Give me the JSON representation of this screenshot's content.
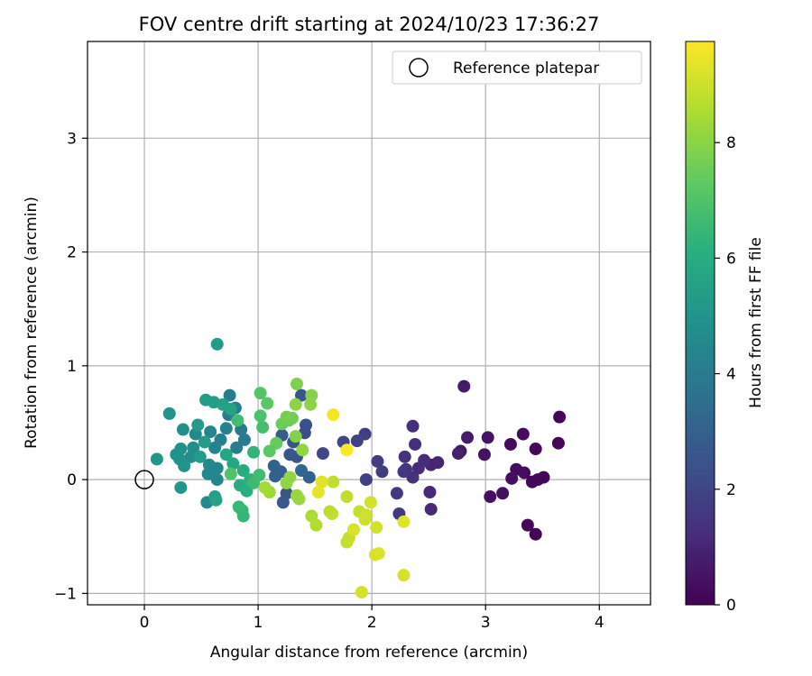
{
  "chart_data": {
    "type": "scatter",
    "title": "FOV centre drift starting at 2024/10/23 17:36:27",
    "xlabel": "Angular distance from reference (arcmin)",
    "ylabel": "Rotation from reference (arcmin)",
    "xlim": [
      -0.5,
      4.45
    ],
    "ylim": [
      -1.1,
      3.85
    ],
    "xticks": [
      0,
      1,
      2,
      3,
      4
    ],
    "yticks": [
      -1,
      0,
      1,
      2,
      3
    ],
    "grid": true,
    "legend": {
      "location": "upper right",
      "entries": [
        "Reference platepar"
      ]
    },
    "reference_point": {
      "x": 0,
      "y": 0
    },
    "colorbar": {
      "label": "Hours from first FF file",
      "range": [
        0,
        9.75
      ],
      "ticks": [
        0,
        2,
        4,
        6,
        8
      ],
      "colormap": "viridis"
    },
    "points": [
      {
        "x": 3.65,
        "y": 0.55,
        "c": 0.1
      },
      {
        "x": 3.64,
        "y": 0.32,
        "c": 0.1
      },
      {
        "x": 3.51,
        "y": 0.02,
        "c": 0.1
      },
      {
        "x": 3.46,
        "y": 0.0,
        "c": 0.2
      },
      {
        "x": 3.41,
        "y": -0.02,
        "c": 0.2
      },
      {
        "x": 3.44,
        "y": 0.27,
        "c": 0.2
      },
      {
        "x": 3.44,
        "y": -0.48,
        "c": 0.1
      },
      {
        "x": 3.37,
        "y": -0.4,
        "c": 0.2
      },
      {
        "x": 3.34,
        "y": 0.06,
        "c": 0.3
      },
      {
        "x": 3.33,
        "y": 0.4,
        "c": 0.3
      },
      {
        "x": 3.27,
        "y": 0.09,
        "c": 0.3
      },
      {
        "x": 3.23,
        "y": 0.01,
        "c": 0.4
      },
      {
        "x": 3.22,
        "y": 0.31,
        "c": 0.3
      },
      {
        "x": 3.15,
        "y": -0.12,
        "c": 0.4
      },
      {
        "x": 3.04,
        "y": -0.15,
        "c": 0.4
      },
      {
        "x": 3.02,
        "y": 0.37,
        "c": 0.5
      },
      {
        "x": 2.99,
        "y": 0.22,
        "c": 0.5
      },
      {
        "x": 2.84,
        "y": 0.37,
        "c": 0.7
      },
      {
        "x": 2.81,
        "y": 0.82,
        "c": 0.7
      },
      {
        "x": 2.78,
        "y": 0.25,
        "c": 0.6
      },
      {
        "x": 2.76,
        "y": 0.23,
        "c": 0.8
      },
      {
        "x": 2.58,
        "y": 0.15,
        "c": 1.0
      },
      {
        "x": 2.52,
        "y": 0.13,
        "c": 1.0
      },
      {
        "x": 2.51,
        "y": -0.11,
        "c": 1.1
      },
      {
        "x": 2.52,
        "y": -0.26,
        "c": 1.1
      },
      {
        "x": 2.46,
        "y": 0.17,
        "c": 1.2
      },
      {
        "x": 2.41,
        "y": 0.1,
        "c": 1.2
      },
      {
        "x": 2.38,
        "y": 0.31,
        "c": 1.3
      },
      {
        "x": 2.36,
        "y": 0.47,
        "c": 1.3
      },
      {
        "x": 2.36,
        "y": 0.02,
        "c": 1.4
      },
      {
        "x": 2.3,
        "y": 0.09,
        "c": 1.4
      },
      {
        "x": 2.29,
        "y": 0.2,
        "c": 1.4
      },
      {
        "x": 2.28,
        "y": 0.07,
        "c": 1.5
      },
      {
        "x": 2.24,
        "y": -0.3,
        "c": 1.6
      },
      {
        "x": 2.22,
        "y": -0.12,
        "c": 1.6
      },
      {
        "x": 2.09,
        "y": 0.07,
        "c": 1.7
      },
      {
        "x": 2.05,
        "y": 0.16,
        "c": 1.7
      },
      {
        "x": 1.95,
        "y": 0.0,
        "c": 1.8
      },
      {
        "x": 1.94,
        "y": 0.4,
        "c": 1.8
      },
      {
        "x": 1.87,
        "y": 0.34,
        "c": 1.9
      },
      {
        "x": 1.75,
        "y": 0.33,
        "c": 2.0
      },
      {
        "x": 1.57,
        "y": 0.23,
        "c": 2.1
      },
      {
        "x": 1.42,
        "y": 0.48,
        "c": 2.4
      },
      {
        "x": 1.41,
        "y": 0.41,
        "c": 2.3
      },
      {
        "x": 1.38,
        "y": 0.74,
        "c": 2.6
      },
      {
        "x": 1.34,
        "y": 0.2,
        "c": 2.5
      },
      {
        "x": 1.31,
        "y": 0.33,
        "c": 2.6
      },
      {
        "x": 1.28,
        "y": 0.22,
        "c": 2.6
      },
      {
        "x": 1.25,
        "y": -0.12,
        "c": 2.6
      },
      {
        "x": 1.22,
        "y": -0.2,
        "c": 2.7
      },
      {
        "x": 1.21,
        "y": 0.39,
        "c": 2.8
      },
      {
        "x": 1.2,
        "y": 0.07,
        "c": 2.9
      },
      {
        "x": 1.15,
        "y": 0.03,
        "c": 3.0
      },
      {
        "x": 1.14,
        "y": 0.12,
        "c": 3.0
      },
      {
        "x": 1.45,
        "y": 0.02,
        "c": 3.0
      },
      {
        "x": 1.38,
        "y": 0.08,
        "c": 3.2
      },
      {
        "x": 0.8,
        "y": 0.63,
        "c": 4.0
      },
      {
        "x": 0.75,
        "y": 0.74,
        "c": 4.1
      },
      {
        "x": 0.88,
        "y": 0.35,
        "c": 4.0
      },
      {
        "x": 0.85,
        "y": 0.44,
        "c": 4.0
      },
      {
        "x": 0.81,
        "y": 0.28,
        "c": 4.0
      },
      {
        "x": 0.74,
        "y": 0.57,
        "c": 4.1
      },
      {
        "x": 0.72,
        "y": 0.45,
        "c": 4.2
      },
      {
        "x": 0.67,
        "y": 0.35,
        "c": 4.2
      },
      {
        "x": 0.62,
        "y": 0.28,
        "c": 4.3
      },
      {
        "x": 0.64,
        "y": 0.1,
        "c": 4.4
      },
      {
        "x": 0.64,
        "y": 0.0,
        "c": 4.4
      },
      {
        "x": 0.58,
        "y": 0.42,
        "c": 4.4
      },
      {
        "x": 0.57,
        "y": 0.13,
        "c": 4.5
      },
      {
        "x": 0.56,
        "y": 0.05,
        "c": 4.5
      },
      {
        "x": 0.55,
        "y": -0.2,
        "c": 4.6
      },
      {
        "x": 0.45,
        "y": 0.4,
        "c": 4.6
      },
      {
        "x": 0.43,
        "y": 0.28,
        "c": 4.7
      },
      {
        "x": 0.41,
        "y": 0.2,
        "c": 4.7
      },
      {
        "x": 0.34,
        "y": 0.44,
        "c": 4.8
      },
      {
        "x": 0.32,
        "y": 0.27,
        "c": 4.8
      },
      {
        "x": 0.31,
        "y": 0.18,
        "c": 4.9
      },
      {
        "x": 0.28,
        "y": 0.22,
        "c": 4.9
      },
      {
        "x": 0.35,
        "y": 0.12,
        "c": 5.0
      },
      {
        "x": 0.22,
        "y": 0.58,
        "c": 5.0
      },
      {
        "x": 0.32,
        "y": -0.07,
        "c": 5.1
      },
      {
        "x": 0.11,
        "y": 0.18,
        "c": 5.1
      },
      {
        "x": 0.64,
        "y": 1.19,
        "c": 5.3
      },
      {
        "x": 0.47,
        "y": 0.48,
        "c": 5.2
      },
      {
        "x": 0.53,
        "y": 0.33,
        "c": 5.3
      },
      {
        "x": 0.49,
        "y": 0.2,
        "c": 5.3
      },
      {
        "x": 0.61,
        "y": 0.68,
        "c": 5.4
      },
      {
        "x": 0.54,
        "y": 0.7,
        "c": 5.4
      },
      {
        "x": 0.69,
        "y": 0.66,
        "c": 5.5
      },
      {
        "x": 0.76,
        "y": 0.62,
        "c": 5.6
      },
      {
        "x": 0.62,
        "y": -0.15,
        "c": 5.5
      },
      {
        "x": 0.63,
        "y": -0.18,
        "c": 5.6
      },
      {
        "x": 0.72,
        "y": 0.22,
        "c": 5.7
      },
      {
        "x": 0.78,
        "y": 0.14,
        "c": 5.8
      },
      {
        "x": 0.87,
        "y": 0.08,
        "c": 6.0
      },
      {
        "x": 0.84,
        "y": -0.05,
        "c": 6.0
      },
      {
        "x": 0.9,
        "y": -0.1,
        "c": 6.1
      },
      {
        "x": 0.93,
        "y": 0.0,
        "c": 6.2
      },
      {
        "x": 0.96,
        "y": 0.24,
        "c": 6.3
      },
      {
        "x": 0.86,
        "y": -0.27,
        "c": 6.3
      },
      {
        "x": 0.87,
        "y": -0.32,
        "c": 6.4
      },
      {
        "x": 0.83,
        "y": -0.24,
        "c": 6.5
      },
      {
        "x": 0.96,
        "y": -0.03,
        "c": 6.6
      },
      {
        "x": 1.01,
        "y": 0.04,
        "c": 6.7
      },
      {
        "x": 1.04,
        "y": 0.46,
        "c": 6.8
      },
      {
        "x": 1.02,
        "y": 0.56,
        "c": 6.9
      },
      {
        "x": 1.02,
        "y": 0.76,
        "c": 7.1
      },
      {
        "x": 1.08,
        "y": 0.67,
        "c": 7.2
      },
      {
        "x": 0.82,
        "y": 0.52,
        "c": 6.7
      },
      {
        "x": 0.76,
        "y": 0.05,
        "c": 7.0
      },
      {
        "x": 1.1,
        "y": 0.25,
        "c": 7.2
      },
      {
        "x": 1.16,
        "y": 0.32,
        "c": 7.4
      },
      {
        "x": 1.21,
        "y": 0.49,
        "c": 7.5
      },
      {
        "x": 1.27,
        "y": 0.52,
        "c": 7.5
      },
      {
        "x": 1.3,
        "y": 0.54,
        "c": 7.6
      },
      {
        "x": 1.25,
        "y": 0.55,
        "c": 7.7
      },
      {
        "x": 1.34,
        "y": 0.84,
        "c": 7.8
      },
      {
        "x": 1.47,
        "y": 0.74,
        "c": 7.9
      },
      {
        "x": 1.46,
        "y": 0.66,
        "c": 8.0
      },
      {
        "x": 1.33,
        "y": 0.66,
        "c": 8.0
      },
      {
        "x": 1.33,
        "y": 0.38,
        "c": 7.9
      },
      {
        "x": 1.39,
        "y": 0.26,
        "c": 8.1
      },
      {
        "x": 1.28,
        "y": 0.02,
        "c": 8.1
      },
      {
        "x": 1.34,
        "y": -0.14,
        "c": 8.2
      },
      {
        "x": 1.36,
        "y": -0.17,
        "c": 8.2
      },
      {
        "x": 1.25,
        "y": -0.03,
        "c": 8.1
      },
      {
        "x": 1.1,
        "y": -0.11,
        "c": 8.3
      },
      {
        "x": 1.06,
        "y": -0.07,
        "c": 8.4
      },
      {
        "x": 1.47,
        "y": -0.32,
        "c": 8.5
      },
      {
        "x": 1.51,
        "y": -0.4,
        "c": 8.6
      },
      {
        "x": 1.63,
        "y": -0.28,
        "c": 8.7
      },
      {
        "x": 1.65,
        "y": -0.3,
        "c": 8.8
      },
      {
        "x": 1.66,
        "y": -0.02,
        "c": 8.8
      },
      {
        "x": 1.78,
        "y": -0.15,
        "c": 8.8
      },
      {
        "x": 1.8,
        "y": -0.51,
        "c": 8.9
      },
      {
        "x": 1.78,
        "y": -0.55,
        "c": 8.9
      },
      {
        "x": 1.89,
        "y": -0.28,
        "c": 8.9
      },
      {
        "x": 1.95,
        "y": -0.31,
        "c": 9.0
      },
      {
        "x": 1.94,
        "y": -0.35,
        "c": 9.0
      },
      {
        "x": 1.99,
        "y": -0.2,
        "c": 9.1
      },
      {
        "x": 2.04,
        "y": -0.42,
        "c": 9.1
      },
      {
        "x": 2.03,
        "y": -0.66,
        "c": 9.2
      },
      {
        "x": 2.06,
        "y": -0.65,
        "c": 9.2
      },
      {
        "x": 2.28,
        "y": -0.37,
        "c": 9.3
      },
      {
        "x": 2.28,
        "y": -0.84,
        "c": 9.1
      },
      {
        "x": 1.91,
        "y": -0.99,
        "c": 9.1
      },
      {
        "x": 1.84,
        "y": -0.44,
        "c": 9.2
      },
      {
        "x": 1.56,
        "y": -0.02,
        "c": 9.3
      },
      {
        "x": 1.53,
        "y": -0.11,
        "c": 9.4
      },
      {
        "x": 1.66,
        "y": 0.57,
        "c": 9.6
      },
      {
        "x": 1.78,
        "y": 0.26,
        "c": 9.7
      }
    ]
  }
}
